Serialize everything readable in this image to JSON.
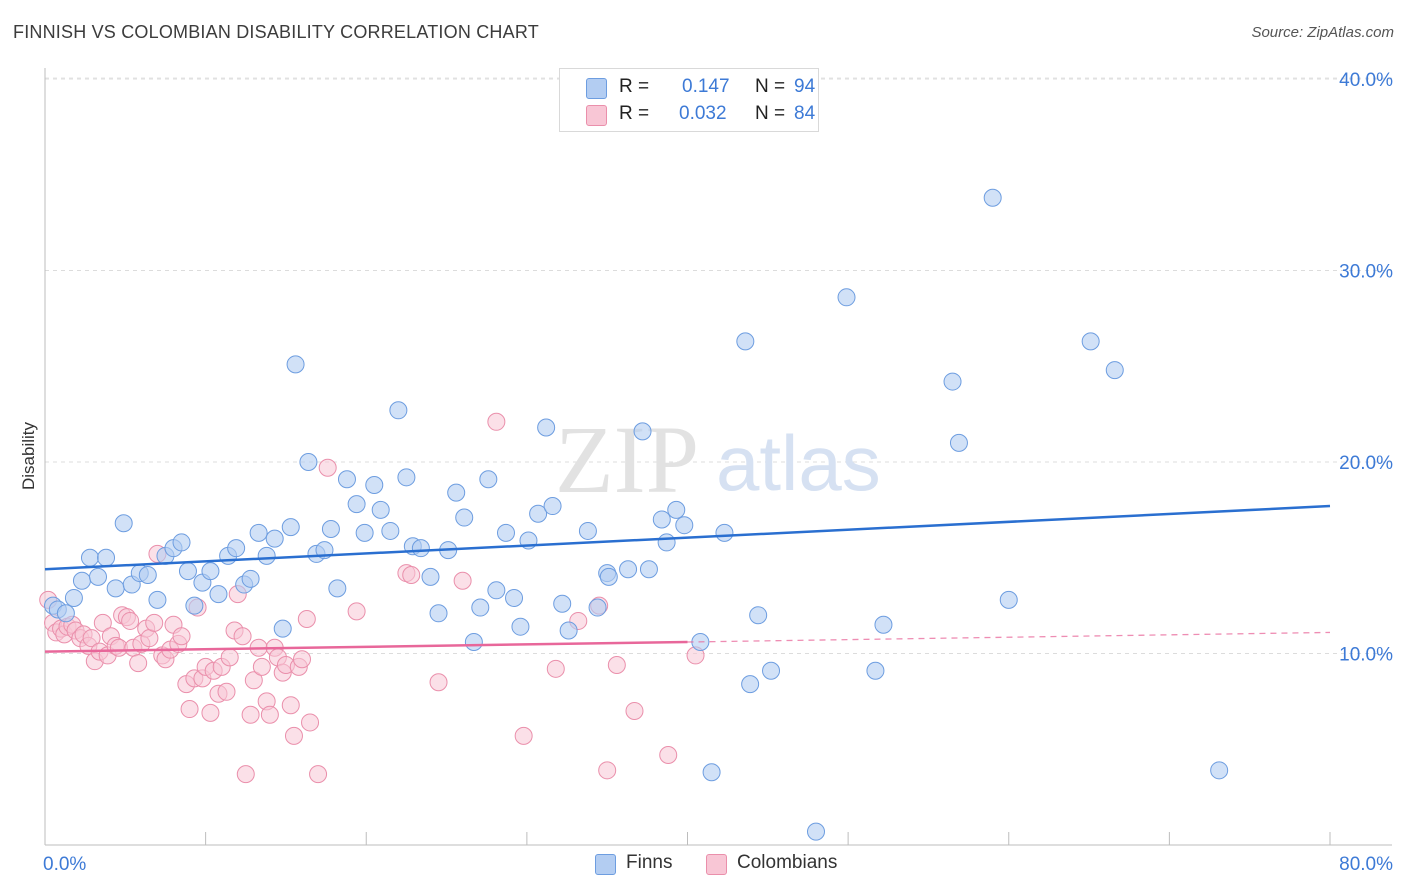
{
  "title": "FINNISH VS COLOMBIAN DISABILITY CORRELATION CHART",
  "source": "Source: ZipAtlas.com",
  "watermark": {
    "zip": "ZIP",
    "atlas": "atlas"
  },
  "legend": {
    "rows": [
      {
        "r_label": "R =",
        "r_value": "0.147",
        "n_label": "N =",
        "n_value": "94",
        "color": "#aec8f0",
        "border": "#6d9de0"
      },
      {
        "r_label": "R =",
        "r_value": "0.032",
        "n_label": "N =",
        "n_value": "84",
        "color": "#f8c3d3",
        "border": "#ea8fab"
      }
    ]
  },
  "bottom_legend": {
    "finns": "Finns",
    "colombians": "Colombians"
  },
  "chart_data": {
    "type": "scatter",
    "title": "FINNISH VS COLOMBIAN DISABILITY CORRELATION CHART",
    "xlabel": "",
    "ylabel": "Disability",
    "xlim": [
      0,
      80
    ],
    "ylim": [
      0,
      42
    ],
    "x_tick_labels": [
      "0.0%",
      "80.0%"
    ],
    "y_ticks": [
      10,
      20,
      30,
      40
    ],
    "y_tick_labels": [
      "10.0%",
      "20.0%",
      "30.0%",
      "40.0%"
    ],
    "grid": true,
    "legend_position": "top-center",
    "colors": {
      "finns": "#6d9de0",
      "finns_fill": "#b3cdf2",
      "finns_line": "#2a6fd0",
      "colombians": "#ea8fab",
      "colombians_fill": "#f8c6d5",
      "colombians_line": "#e8679a"
    },
    "series": [
      {
        "name": "Finns",
        "r": 0.147,
        "n": 94,
        "trend": {
          "x": [
            0,
            80
          ],
          "y": [
            14.4,
            17.7
          ],
          "style": "solid"
        },
        "points": [
          [
            0.5,
            12.5
          ],
          [
            0.8,
            12.3
          ],
          [
            1.3,
            12.1
          ],
          [
            1.8,
            12.9
          ],
          [
            2.3,
            13.8
          ],
          [
            2.8,
            15.0
          ],
          [
            3.3,
            14.0
          ],
          [
            3.8,
            15.0
          ],
          [
            4.4,
            13.4
          ],
          [
            4.9,
            16.8
          ],
          [
            5.4,
            13.6
          ],
          [
            5.9,
            14.2
          ],
          [
            6.4,
            14.1
          ],
          [
            7.0,
            12.8
          ],
          [
            7.5,
            15.1
          ],
          [
            8.0,
            15.5
          ],
          [
            8.5,
            15.8
          ],
          [
            8.9,
            14.3
          ],
          [
            9.3,
            12.5
          ],
          [
            9.8,
            13.7
          ],
          [
            10.3,
            14.3
          ],
          [
            10.8,
            13.1
          ],
          [
            11.4,
            15.1
          ],
          [
            11.9,
            15.5
          ],
          [
            12.4,
            13.6
          ],
          [
            12.8,
            13.9
          ],
          [
            13.3,
            16.3
          ],
          [
            13.8,
            15.1
          ],
          [
            14.3,
            16.0
          ],
          [
            14.8,
            11.3
          ],
          [
            15.3,
            16.6
          ],
          [
            15.6,
            25.1
          ],
          [
            16.4,
            20.0
          ],
          [
            16.9,
            15.2
          ],
          [
            17.4,
            15.4
          ],
          [
            17.8,
            16.5
          ],
          [
            18.2,
            13.4
          ],
          [
            18.8,
            19.1
          ],
          [
            19.4,
            17.8
          ],
          [
            19.9,
            16.3
          ],
          [
            20.5,
            18.8
          ],
          [
            20.9,
            17.5
          ],
          [
            21.5,
            16.4
          ],
          [
            22.0,
            22.7
          ],
          [
            22.5,
            19.2
          ],
          [
            22.9,
            15.6
          ],
          [
            23.4,
            15.5
          ],
          [
            24.0,
            14.0
          ],
          [
            24.5,
            12.1
          ],
          [
            25.1,
            15.4
          ],
          [
            25.6,
            18.4
          ],
          [
            26.1,
            17.1
          ],
          [
            26.7,
            10.6
          ],
          [
            27.1,
            12.4
          ],
          [
            27.6,
            19.1
          ],
          [
            28.1,
            13.3
          ],
          [
            28.7,
            16.3
          ],
          [
            29.2,
            12.9
          ],
          [
            29.6,
            11.4
          ],
          [
            30.1,
            15.9
          ],
          [
            30.7,
            17.3
          ],
          [
            31.2,
            21.8
          ],
          [
            31.6,
            17.7
          ],
          [
            32.2,
            12.6
          ],
          [
            32.6,
            11.2
          ],
          [
            33.8,
            16.4
          ],
          [
            34.4,
            12.4
          ],
          [
            35.0,
            14.2
          ],
          [
            35.1,
            14.0
          ],
          [
            36.3,
            14.4
          ],
          [
            37.2,
            21.6
          ],
          [
            37.6,
            14.4
          ],
          [
            38.4,
            17.0
          ],
          [
            38.7,
            15.8
          ],
          [
            39.3,
            17.5
          ],
          [
            39.8,
            16.7
          ],
          [
            40.8,
            10.6
          ],
          [
            41.5,
            3.8
          ],
          [
            42.3,
            16.3
          ],
          [
            43.6,
            26.3
          ],
          [
            43.9,
            8.4
          ],
          [
            44.4,
            12.0
          ],
          [
            45.2,
            9.1
          ],
          [
            48.0,
            0.7
          ],
          [
            49.9,
            28.6
          ],
          [
            51.7,
            9.1
          ],
          [
            52.2,
            11.5
          ],
          [
            56.5,
            24.2
          ],
          [
            56.9,
            21.0
          ],
          [
            59.0,
            33.8
          ],
          [
            60.0,
            12.8
          ],
          [
            65.1,
            26.3
          ],
          [
            66.6,
            24.8
          ],
          [
            73.1,
            3.9
          ]
        ]
      },
      {
        "name": "Colombians",
        "r": 0.032,
        "n": 84,
        "trend": {
          "x": [
            0,
            40
          ],
          "y": [
            10.1,
            10.6
          ],
          "style": "solid",
          "dashed_to": {
            "x": 80,
            "y": 11.1
          }
        },
        "points": [
          [
            0.2,
            12.8
          ],
          [
            0.5,
            11.6
          ],
          [
            0.7,
            11.1
          ],
          [
            1.0,
            11.3
          ],
          [
            1.2,
            11.0
          ],
          [
            1.4,
            11.4
          ],
          [
            1.7,
            11.5
          ],
          [
            1.9,
            11.2
          ],
          [
            2.2,
            10.8
          ],
          [
            2.4,
            11.0
          ],
          [
            2.7,
            10.4
          ],
          [
            2.9,
            10.8
          ],
          [
            3.1,
            9.6
          ],
          [
            3.4,
            10.1
          ],
          [
            3.6,
            11.6
          ],
          [
            3.9,
            9.9
          ],
          [
            4.1,
            10.9
          ],
          [
            4.4,
            10.4
          ],
          [
            4.6,
            10.3
          ],
          [
            4.8,
            12.0
          ],
          [
            5.1,
            11.9
          ],
          [
            5.3,
            11.7
          ],
          [
            5.5,
            10.3
          ],
          [
            5.8,
            9.5
          ],
          [
            6.0,
            10.5
          ],
          [
            6.3,
            11.3
          ],
          [
            6.5,
            10.8
          ],
          [
            6.8,
            11.6
          ],
          [
            7.0,
            15.2
          ],
          [
            7.3,
            9.9
          ],
          [
            7.5,
            9.7
          ],
          [
            7.8,
            10.2
          ],
          [
            8.0,
            11.5
          ],
          [
            8.3,
            10.5
          ],
          [
            8.5,
            10.9
          ],
          [
            8.8,
            8.4
          ],
          [
            9.0,
            7.1
          ],
          [
            9.3,
            8.7
          ],
          [
            9.5,
            12.4
          ],
          [
            9.8,
            8.7
          ],
          [
            10.0,
            9.3
          ],
          [
            10.3,
            6.9
          ],
          [
            10.5,
            9.1
          ],
          [
            10.8,
            7.9
          ],
          [
            11.0,
            9.3
          ],
          [
            11.3,
            8.0
          ],
          [
            11.5,
            9.8
          ],
          [
            11.8,
            11.2
          ],
          [
            12.0,
            13.1
          ],
          [
            12.3,
            10.9
          ],
          [
            12.5,
            3.7
          ],
          [
            12.8,
            6.8
          ],
          [
            13.0,
            8.6
          ],
          [
            13.3,
            10.3
          ],
          [
            13.5,
            9.3
          ],
          [
            13.8,
            7.5
          ],
          [
            14.0,
            6.8
          ],
          [
            14.3,
            10.3
          ],
          [
            14.5,
            9.8
          ],
          [
            14.8,
            9.0
          ],
          [
            15.0,
            9.4
          ],
          [
            15.3,
            7.3
          ],
          [
            15.5,
            5.7
          ],
          [
            15.8,
            9.3
          ],
          [
            16.0,
            9.7
          ],
          [
            16.3,
            11.8
          ],
          [
            16.5,
            6.4
          ],
          [
            17.0,
            3.7
          ],
          [
            17.6,
            19.7
          ],
          [
            19.4,
            12.2
          ],
          [
            22.5,
            14.2
          ],
          [
            22.8,
            14.1
          ],
          [
            24.5,
            8.5
          ],
          [
            26.0,
            13.8
          ],
          [
            28.1,
            22.1
          ],
          [
            29.8,
            5.7
          ],
          [
            31.8,
            9.2
          ],
          [
            33.2,
            11.7
          ],
          [
            34.5,
            12.5
          ],
          [
            35.0,
            3.9
          ],
          [
            35.6,
            9.4
          ],
          [
            36.7,
            7.0
          ],
          [
            38.8,
            4.7
          ],
          [
            40.5,
            9.9
          ]
        ]
      }
    ]
  }
}
